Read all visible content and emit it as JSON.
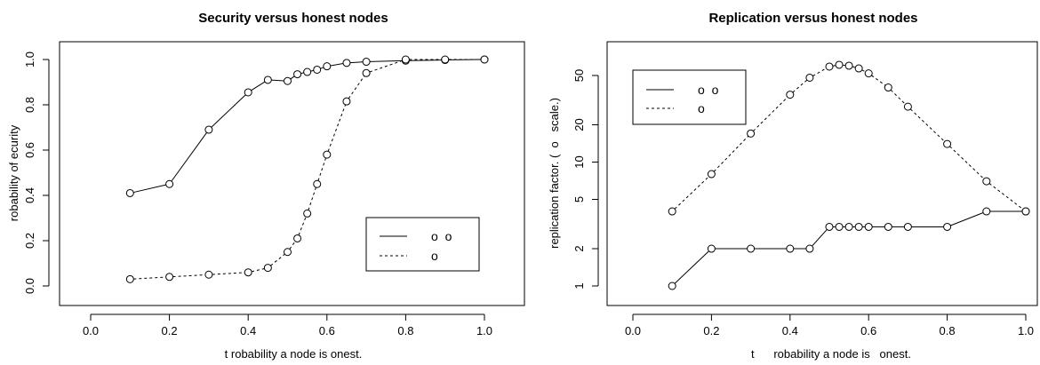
{
  "chart_data": [
    {
      "type": "line",
      "title": "Security versus honest nodes",
      "xlabel": "t      robability a node is   onest.",
      "ylabel": "robability of    ecurity",
      "xlim": [
        0.0,
        1.0
      ],
      "ylim": [
        0.0,
        1.0
      ],
      "x_ticks": [
        "0.0",
        "0.2",
        "0.4",
        "0.6",
        "0.8",
        "1.0"
      ],
      "y_ticks": [
        "0.0",
        "0.2",
        "0.4",
        "0.6",
        "0.8",
        "1.0"
      ],
      "x_tick_values": [
        0.0,
        0.2,
        0.4,
        0.6,
        0.8,
        1.0
      ],
      "y_tick_values": [
        0.0,
        0.2,
        0.4,
        0.6,
        0.8,
        1.0
      ],
      "y_scale": "linear",
      "grid": false,
      "legend_position": "bottom-right",
      "legend": [
        "o  o",
        "o"
      ],
      "series": [
        {
          "style": "solid",
          "x": [
            0.1,
            0.2,
            0.3,
            0.4,
            0.45,
            0.5,
            0.525,
            0.55,
            0.575,
            0.6,
            0.65,
            0.7,
            0.8,
            0.9,
            1.0
          ],
          "values": [
            0.41,
            0.45,
            0.69,
            0.855,
            0.91,
            0.905,
            0.935,
            0.945,
            0.955,
            0.97,
            0.985,
            0.99,
            0.995,
            0.998,
            1.0
          ]
        },
        {
          "style": "dashed",
          "x": [
            0.1,
            0.2,
            0.3,
            0.4,
            0.45,
            0.5,
            0.525,
            0.55,
            0.575,
            0.6,
            0.65,
            0.7,
            0.8,
            0.9,
            1.0
          ],
          "values": [
            0.03,
            0.04,
            0.05,
            0.06,
            0.08,
            0.15,
            0.21,
            0.32,
            0.45,
            0.58,
            0.815,
            0.94,
            1.0,
            1.0,
            1.0
          ]
        }
      ]
    },
    {
      "type": "line",
      "title": "Replication versus honest nodes",
      "xlabel": "t      robability a node is   onest.",
      "ylabel": "replication factor. (  o   scale.)",
      "xlim": [
        0.0,
        1.0
      ],
      "ylim": [
        1,
        60
      ],
      "x_ticks": [
        "0.0",
        "0.2",
        "0.4",
        "0.6",
        "0.8",
        "1.0"
      ],
      "y_ticks": [
        "1",
        "2",
        "5",
        "10",
        "20",
        "50"
      ],
      "x_tick_values": [
        0.0,
        0.2,
        0.4,
        0.6,
        0.8,
        1.0
      ],
      "y_tick_values": [
        1,
        2,
        5,
        10,
        20,
        50
      ],
      "y_scale": "log",
      "grid": false,
      "legend_position": "top-left",
      "legend": [
        "o  o",
        "o"
      ],
      "series": [
        {
          "style": "solid",
          "x": [
            0.1,
            0.2,
            0.3,
            0.4,
            0.45,
            0.5,
            0.525,
            0.55,
            0.575,
            0.6,
            0.65,
            0.7,
            0.8,
            0.9,
            1.0
          ],
          "values": [
            1,
            2,
            2,
            2,
            2,
            3,
            3,
            3,
            3,
            3,
            3,
            3,
            3,
            4,
            4
          ]
        },
        {
          "style": "dashed",
          "x": [
            0.1,
            0.2,
            0.3,
            0.4,
            0.45,
            0.5,
            0.525,
            0.55,
            0.575,
            0.6,
            0.65,
            0.7,
            0.8,
            0.9,
            1.0
          ],
          "values": [
            4,
            8,
            17,
            35,
            48,
            59,
            61,
            60,
            57,
            52,
            40,
            28,
            14,
            7,
            4
          ]
        }
      ]
    }
  ]
}
